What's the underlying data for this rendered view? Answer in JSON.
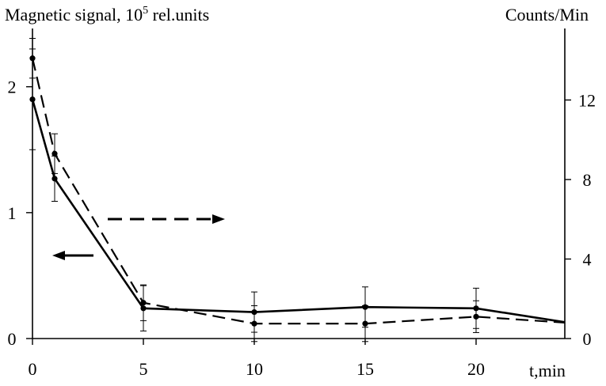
{
  "chart_data": {
    "type": "line",
    "ylabel_left_prefix": "Magnetic signal, 10",
    "ylabel_left_exp": "5",
    "ylabel_left_suffix": " rel.units",
    "ylabel_right": "Counts/Min",
    "xlabel": "t,min",
    "xlim": [
      0,
      24
    ],
    "ylim_left": [
      0,
      2.4
    ],
    "ylim_right": [
      0,
      15.2
    ],
    "x_ticks": [
      0,
      5,
      10,
      15,
      20
    ],
    "y_left_ticks": [
      0,
      1,
      2
    ],
    "y_right_ticks": [
      0,
      4,
      8,
      12
    ],
    "grid": false,
    "series": [
      {
        "axis": "left",
        "style": "solid",
        "x": [
          0,
          1,
          5,
          10,
          15,
          20,
          24
        ],
        "y": [
          1.9,
          1.27,
          0.24,
          0.21,
          0.25,
          0.24,
          0.13
        ],
        "err": [
          0.4,
          0.18,
          0.18,
          0.16,
          0.16,
          0.16,
          0
        ]
      },
      {
        "axis": "right",
        "style": "dashed",
        "x": [
          0,
          1,
          5,
          10,
          15,
          20,
          24
        ],
        "y": [
          14.1,
          9.3,
          1.8,
          0.75,
          0.75,
          1.1,
          0.8
        ],
        "err": [
          1.0,
          1.0,
          0.9,
          0.9,
          0.9,
          0.8,
          0
        ]
      }
    ],
    "annotations": [
      {
        "type": "arrow",
        "style": "dashed",
        "direction": "right"
      },
      {
        "type": "arrow",
        "style": "solid",
        "direction": "left"
      }
    ]
  }
}
